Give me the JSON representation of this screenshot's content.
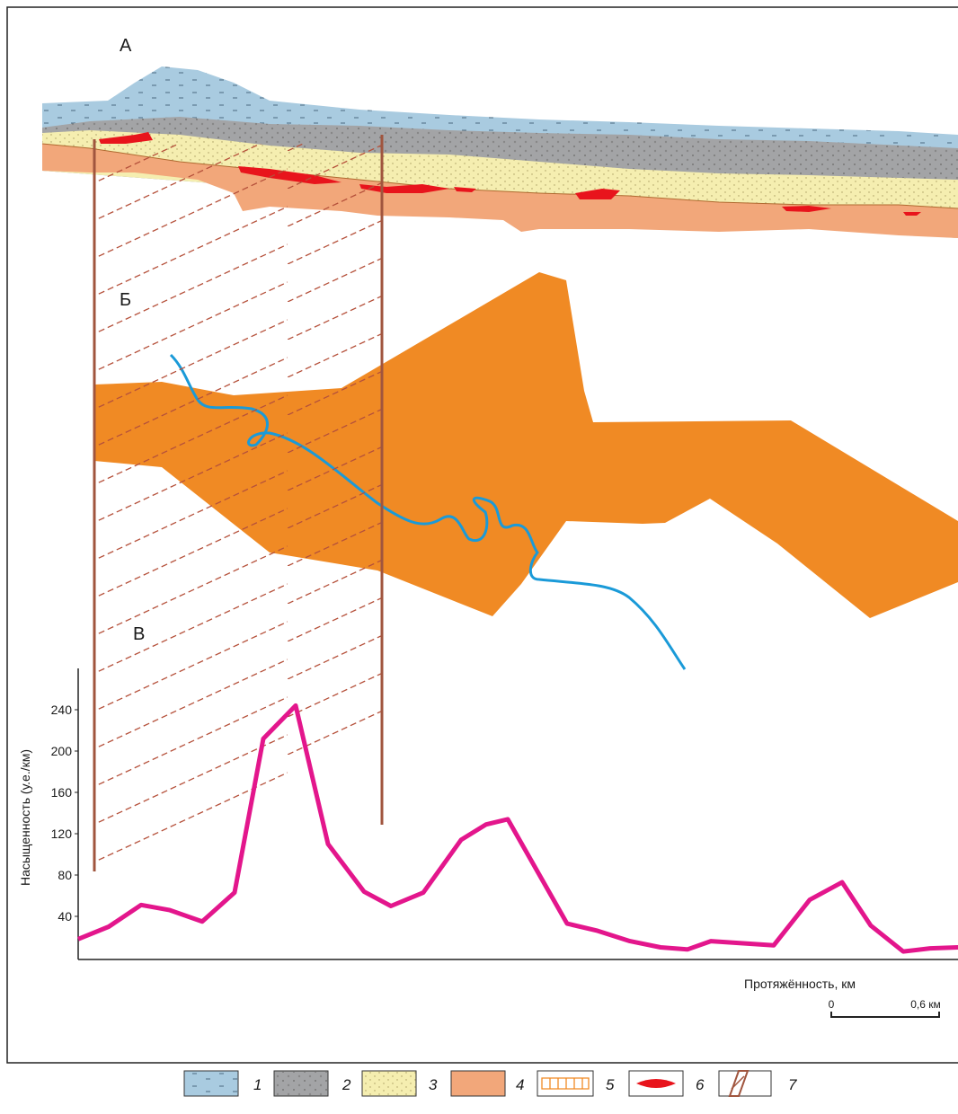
{
  "chart_data": {
    "type": "line",
    "y_label": "Насыщенность (у.е./км)",
    "x_label": "Протяжённость, км",
    "x": [
      0,
      0.17,
      0.35,
      0.51,
      0.69,
      0.87,
      1.03,
      1.21,
      1.39,
      1.59,
      1.74,
      1.92,
      2.13,
      2.27,
      2.39,
      2.72,
      2.89,
      3.07,
      3.24,
      3.39,
      3.52,
      3.69,
      3.87,
      4.07,
      4.25,
      4.41,
      4.59,
      4.74,
      4.9
    ],
    "series": [
      {
        "color": "#e3168c",
        "values": [
          18,
          30,
          51,
          46,
          35,
          63,
          212,
          244,
          110,
          64,
          50,
          63,
          114,
          129,
          134,
          33,
          26,
          16,
          10,
          8,
          16,
          14,
          12,
          56,
          73,
          31,
          6,
          9,
          10
        ]
      }
    ],
    "xlim": [
      0,
      4.9
    ],
    "ylim": [
      0,
      280
    ],
    "yticks": [
      40,
      80,
      120,
      160,
      200,
      240
    ],
    "grid": false
  },
  "panel_labels": [
    "А",
    "Б",
    "В"
  ],
  "scale_bar": {
    "labels": [
      "0",
      "0,6 км"
    ]
  },
  "legend": [
    "1",
    "2",
    "3",
    "4",
    "5",
    "6",
    "7"
  ]
}
